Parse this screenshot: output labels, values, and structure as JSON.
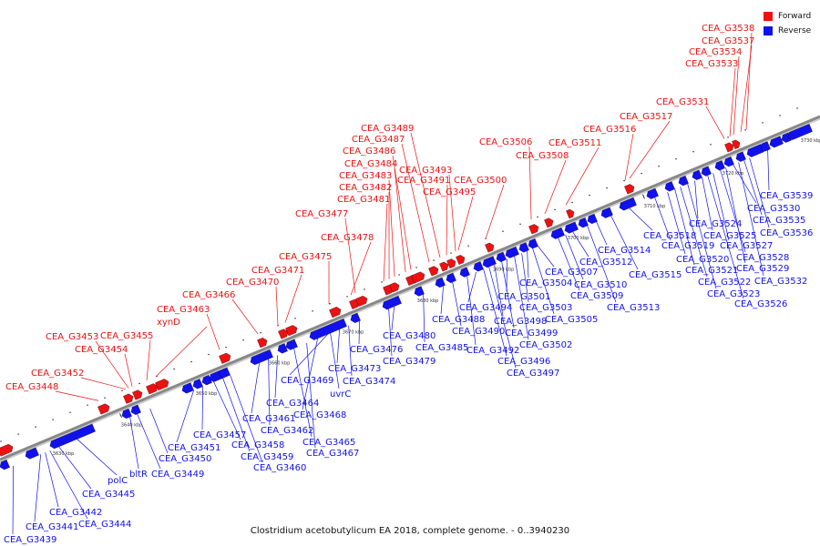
{
  "caption": "Clostridium acetobutylicum EA 2018, complete genome. - 0..3940230",
  "legend": {
    "forward": {
      "label": "Forward",
      "color": "#ee1111"
    },
    "reverse": {
      "label": "Reverse",
      "color": "#1111ee"
    }
  },
  "colors": {
    "forward": "#ee1111",
    "reverse": "#1111ee",
    "backbone": "#888888"
  },
  "scale_ticks": [
    "3630 kbp",
    "3640 kbp",
    "3650 kbp",
    "3660 kbp",
    "3670 kbp",
    "3680 kbp",
    "3690 kbp",
    "3700 kbp",
    "3710 kbp",
    "3720 kbp",
    "3730 kbp"
  ],
  "forward_labels": [
    "CEA_G3448",
    "CEA_G3452",
    "CEA_G3454",
    "CEA_G3453",
    "CEA_G3455",
    "xynD",
    "CEA_G3463",
    "CEA_G3466",
    "CEA_G3470",
    "CEA_G3471",
    "CEA_G3475",
    "CEA_G3478",
    "CEA_G3477",
    "CEA_G3481",
    "CEA_G3482",
    "CEA_G3483",
    "CEA_G3484",
    "CEA_G3486",
    "CEA_G3487",
    "CEA_G3489",
    "CEA_G3491",
    "CEA_G3493",
    "CEA_G3495",
    "CEA_G3500",
    "CEA_G3506",
    "CEA_G3508",
    "CEA_G3511",
    "CEA_G3516",
    "CEA_G3517",
    "CEA_G3531",
    "CEA_G3533",
    "CEA_G3534",
    "CEA_G3537",
    "CEA_G3538"
  ],
  "reverse_labels": [
    "CEA_G3439",
    "CEA_G3441",
    "CEA_G3442",
    "CEA_G3444",
    "CEA_G3445",
    "polC",
    "bltR",
    "CEA_G3449",
    "CEA_G3450",
    "CEA_G3451",
    "CEA_G3457",
    "CEA_G3458",
    "CEA_G3459",
    "CEA_G3460",
    "CEA_G3461",
    "CEA_G3462",
    "CEA_G3464",
    "CEA_G3465",
    "CEA_G3467",
    "CEA_G3468",
    "CEA_G3469",
    "uvrC",
    "CEA_G3473",
    "CEA_G3474",
    "CEA_G3476",
    "CEA_G3479",
    "CEA_G3480",
    "CEA_G3485",
    "CEA_G3488",
    "CEA_G3490",
    "CEA_G3492",
    "CEA_G3494",
    "CEA_G3496",
    "CEA_G3497",
    "CEA_G3498",
    "CEA_G3499",
    "CEA_G3501",
    "CEA_G3502",
    "CEA_G3503",
    "CEA_G3504",
    "CEA_G3505",
    "CEA_G3507",
    "CEA_G3509",
    "CEA_G3510",
    "CEA_G3512",
    "CEA_G3513",
    "CEA_G3514",
    "CEA_G3515",
    "CEA_G3518",
    "CEA_G3519",
    "CEA_G3520",
    "CEA_G3521",
    "CEA_G3522",
    "CEA_G3523",
    "CEA_G3524",
    "CEA_G3525",
    "CEA_G3526",
    "CEA_G3527",
    "CEA_G3528",
    "CEA_G3529",
    "CEA_G3530",
    "CEA_G3532",
    "CEA_G3535",
    "CEA_G3536",
    "CEA_G3539"
  ]
}
